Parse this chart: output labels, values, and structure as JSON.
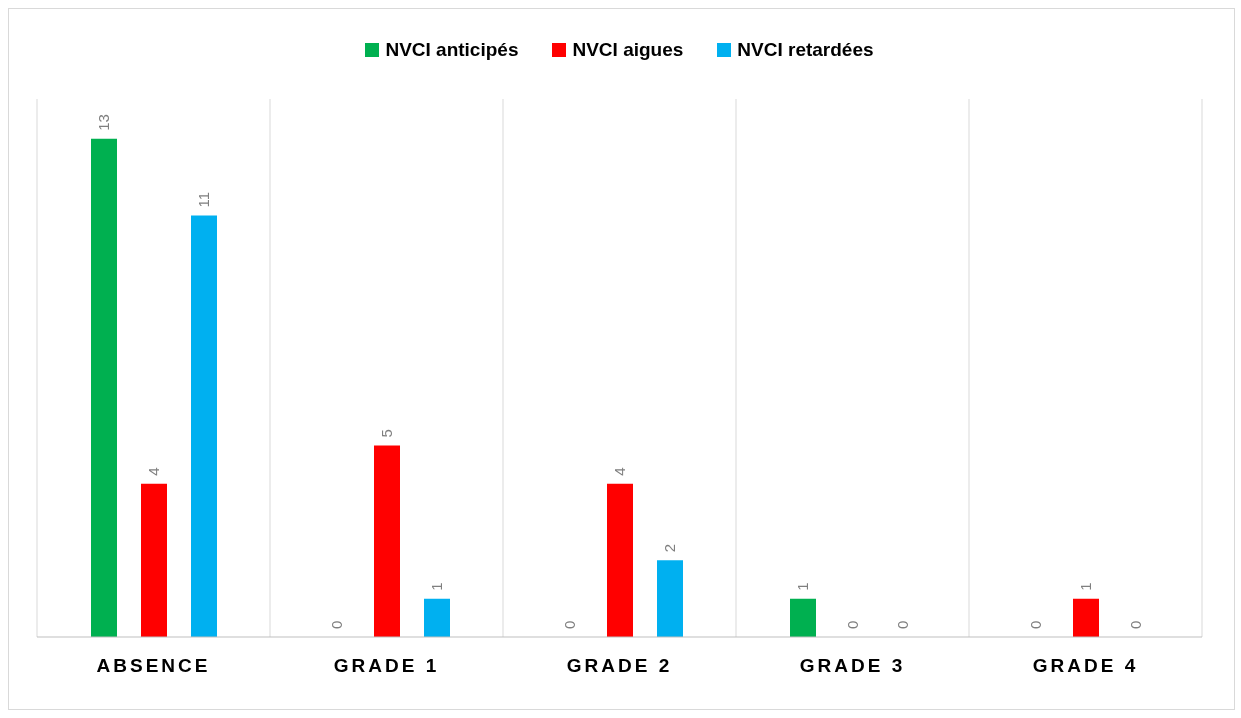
{
  "chart_data": {
    "type": "bar",
    "categories": [
      "ABSENCE",
      "GRADE 1",
      "GRADE 2",
      "GRADE 3",
      "GRADE 4"
    ],
    "series": [
      {
        "name": "NVCI anticipés",
        "color": "#00b050",
        "values": [
          13,
          0,
          0,
          1,
          0
        ]
      },
      {
        "name": "NVCI aigues",
        "color": "#ff0000",
        "values": [
          4,
          5,
          4,
          0,
          1
        ]
      },
      {
        "name": "NVCI retardées",
        "color": "#00b0f0",
        "values": [
          11,
          1,
          2,
          0,
          0
        ]
      }
    ],
    "data_labels": true,
    "legend": "top",
    "grid": "x",
    "tick_labels": "x"
  }
}
